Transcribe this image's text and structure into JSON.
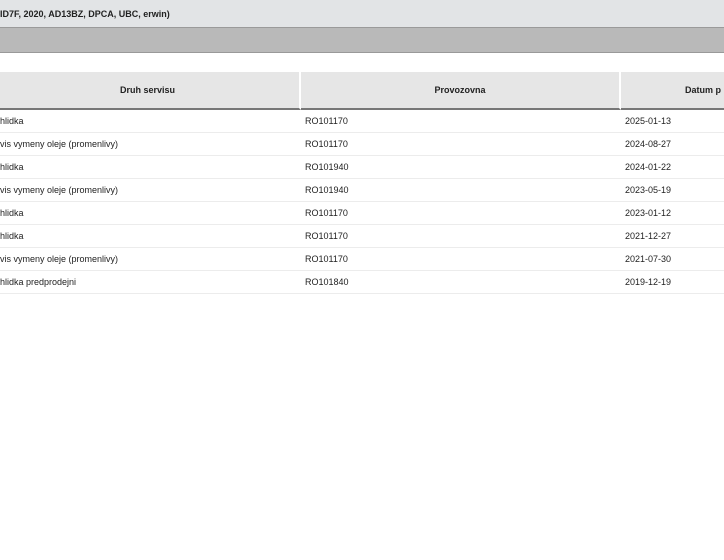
{
  "title": "ID7F, 2020, AD13BZ, DPCA, UBC, erwin)",
  "table": {
    "headers": [
      "Druh servisu",
      "Provozovna",
      "Datum p"
    ],
    "rows": [
      [
        "hlidka",
        "RO101170",
        "2025-01-13"
      ],
      [
        "vis vymeny oleje (promenlivy)",
        "RO101170",
        "2024-08-27"
      ],
      [
        "hlidka",
        "RO101940",
        "2024-01-22"
      ],
      [
        "vis vymeny oleje (promenlivy)",
        "RO101940",
        "2023-05-19"
      ],
      [
        "hlidka",
        "RO101170",
        "2023-01-12"
      ],
      [
        "hlidka",
        "RO101170",
        "2021-12-27"
      ],
      [
        "vis vymeny oleje (promenlivy)",
        "RO101170",
        "2021-07-30"
      ],
      [
        "hlidka predprodejni",
        "RO101840",
        "2019-12-19"
      ]
    ]
  }
}
